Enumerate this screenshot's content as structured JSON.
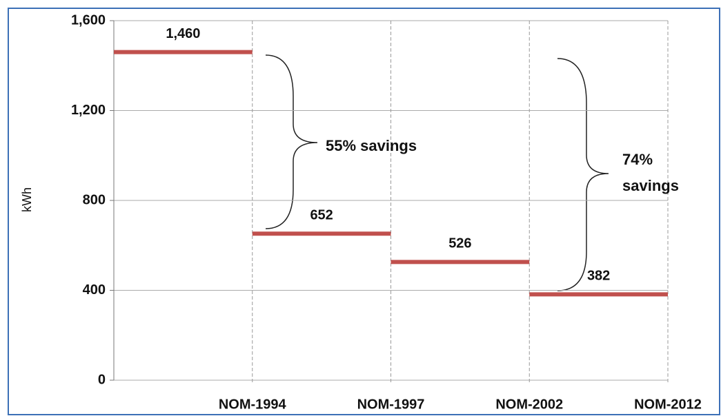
{
  "chart_data": {
    "type": "step",
    "categories": [
      "NOM-1994",
      "NOM-1997",
      "NOM-2002",
      "NOM-2012"
    ],
    "values": [
      1460,
      652,
      526,
      382
    ],
    "value_labels": [
      "1,460",
      "652",
      "526",
      "382"
    ],
    "color": "#c0504d",
    "y_label": "kWh",
    "ylim": [
      0,
      1600
    ],
    "yticks": [
      0,
      400,
      800,
      {
        "value": 1200,
        "label": "1,200"
      },
      {
        "value": 1600,
        "label": "1,600"
      }
    ],
    "grid": true,
    "annotations": [
      {
        "lines": [
          "55% savings"
        ]
      },
      {
        "lines": [
          "74%",
          "savings"
        ]
      }
    ]
  }
}
